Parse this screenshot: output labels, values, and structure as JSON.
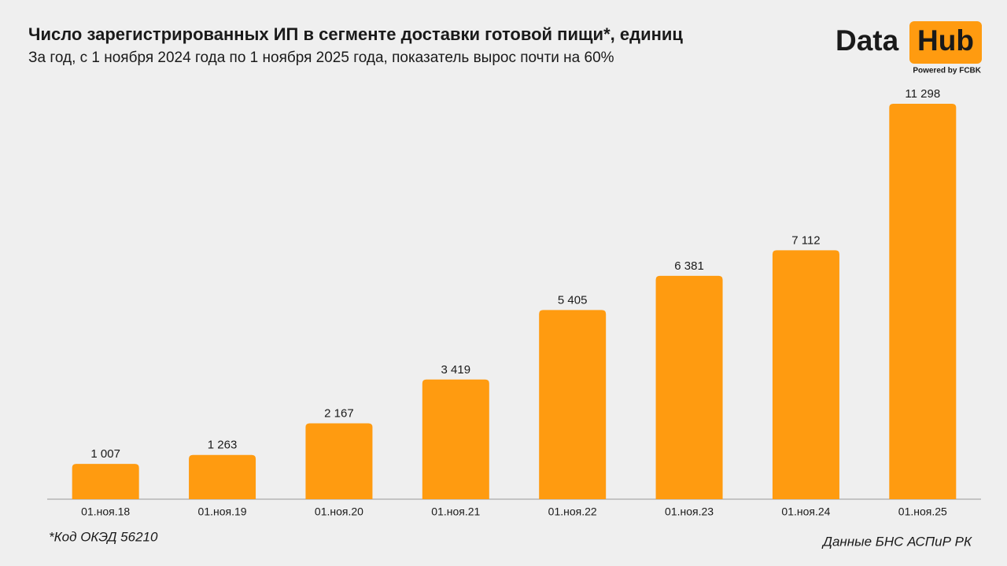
{
  "chart_data": {
    "type": "bar",
    "title": "Число зарегистрированных ИП в сегменте доставки готовой пищи*, единиц",
    "subtitle": "За год, с 1 ноября 2024 года по 1 ноября 2025 года, показатель вырос почти на 60%",
    "categories": [
      "01.ноя.18",
      "01.ноя.19",
      "01.ноя.20",
      "01.ноя.21",
      "01.ноя.22",
      "01.ноя.23",
      "01.ноя.24",
      "01.ноя.25"
    ],
    "values": [
      1007,
      1263,
      2167,
      3419,
      5405,
      6381,
      7112,
      11298
    ],
    "value_labels": [
      "1 007",
      "1 263",
      "2 167",
      "3 419",
      "5 405",
      "6 381",
      "7 112",
      "11 298"
    ],
    "color": "#ff9b10",
    "footnote": "*Код ОКЭД 56210",
    "source": "Данные БНС АСПиР РК"
  },
  "logo": {
    "word1": "Data",
    "word2": "Hub",
    "tagline": "Powered by FCBK"
  }
}
